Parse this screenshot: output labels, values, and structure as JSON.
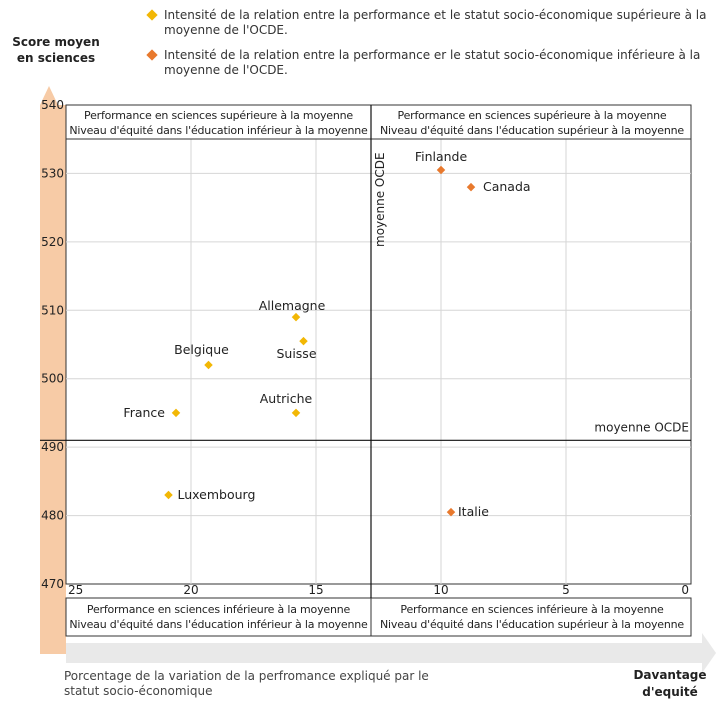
{
  "legend": [
    {
      "label": "Intensité de la relation entre la performance et le statut socio-économique supérieure à la moyenne de l'OCDE.",
      "color": "#F2B705"
    },
    {
      "label": "Intensité de la relation entre la performance er le statut socio-économique inférieure à la moyenne de l'OCDE.",
      "color": "#E8792D"
    }
  ],
  "quadrants": {
    "top_left": [
      "Performance en sciences supérieure à la moyenne",
      "Niveau d'équité dans l'éducation inférieur à la moyenne"
    ],
    "top_right": [
      "Performance en sciences supérieure à la moyenne",
      "Niveau d'équité dans l'éducation supérieur à la moyenne"
    ],
    "bottom_left": [
      "Performance en sciences inférieure à la moyenne",
      "Niveau d'équité dans l'éducation inférieur à la moyenne"
    ],
    "bottom_right": [
      "Performance en sciences inférieure à la moyenne",
      "Niveau d'équité dans l'éducation supérieur à la moyenne"
    ]
  },
  "axis_labels": {
    "y": [
      "Score moyen",
      "en sciences"
    ],
    "x": "Porcentage de la variation de la perfromance expliqué par le statut socio-économique",
    "equity": [
      "Davantage",
      "d'equité"
    ]
  },
  "colors": {
    "above": "#F2B705",
    "below": "#E8792D",
    "arrow": "#F7CBA6",
    "arrow_x": "#E9E9E9"
  },
  "chart_data": {
    "type": "scatter",
    "xlim": [
      25,
      0
    ],
    "ylim": [
      470,
      540
    ],
    "x_ticks": [
      25,
      20,
      15,
      10,
      5,
      0
    ],
    "y_ticks": [
      470,
      480,
      490,
      500,
      510,
      520,
      530,
      540
    ],
    "grid": true,
    "reference_lines": {
      "x": 12.8,
      "y": 491,
      "x_label": "moyenne OCDE",
      "y_label": "moyenne OCDE"
    },
    "points": [
      {
        "label": "Finlande",
        "x": 10.0,
        "y": 530.5,
        "group": "below"
      },
      {
        "label": "Canada",
        "x": 8.8,
        "y": 528,
        "group": "below"
      },
      {
        "label": "Allemagne",
        "x": 15.8,
        "y": 509,
        "group": "above"
      },
      {
        "label": "Suisse",
        "x": 15.5,
        "y": 505.5,
        "group": "above"
      },
      {
        "label": "Belgique",
        "x": 19.3,
        "y": 502,
        "group": "above"
      },
      {
        "label": "Autriche",
        "x": 15.8,
        "y": 495,
        "group": "above"
      },
      {
        "label": "France",
        "x": 20.6,
        "y": 495,
        "group": "above"
      },
      {
        "label": "Luxembourg",
        "x": 20.9,
        "y": 483,
        "group": "above"
      },
      {
        "label": "Italie",
        "x": 9.6,
        "y": 480.5,
        "group": "below"
      }
    ]
  }
}
